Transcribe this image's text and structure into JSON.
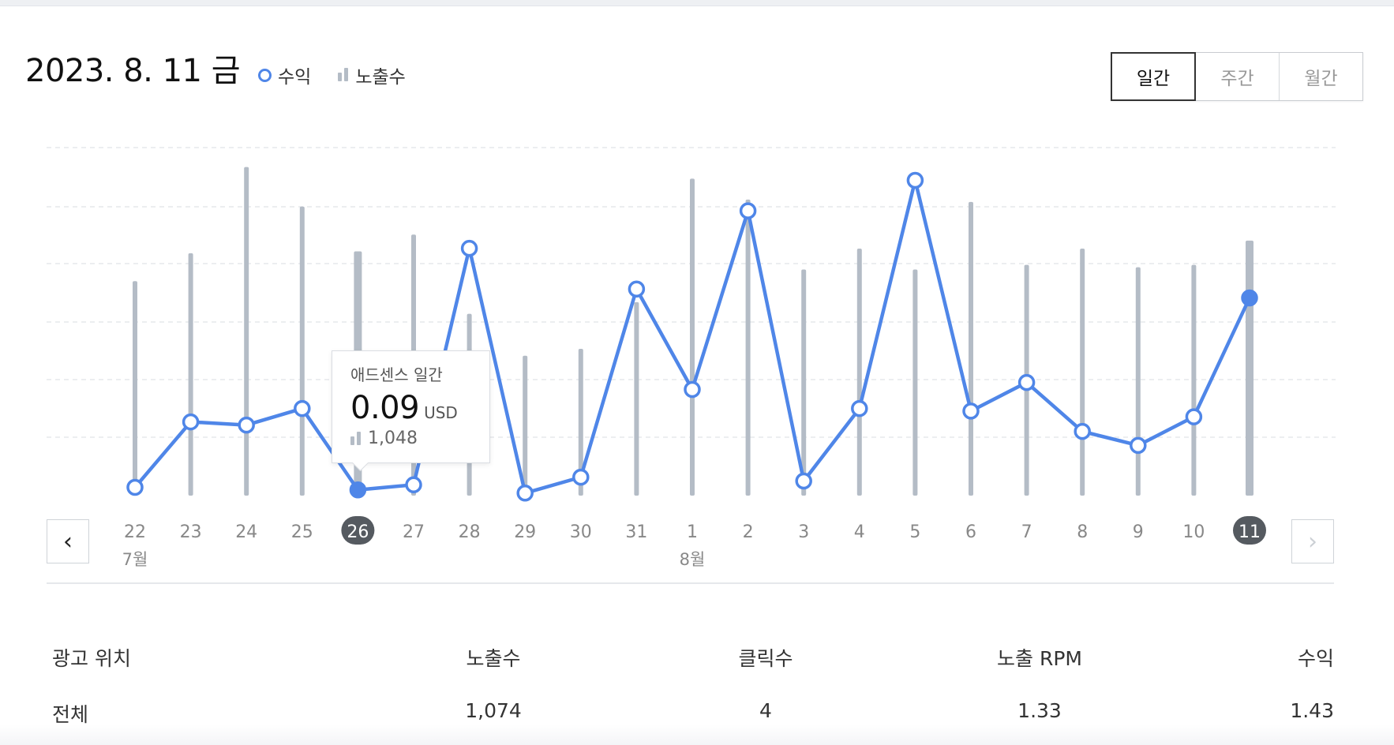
{
  "header": {
    "date": "2023. 8. 11 금",
    "legend": [
      {
        "label": "수익",
        "icon": "circle-dot-icon",
        "color": "#4f86e8"
      },
      {
        "label": "노출수",
        "icon": "bars-icon",
        "color": "#b4bcc6"
      }
    ],
    "period_tabs": [
      {
        "label": "일간",
        "active": true
      },
      {
        "label": "주간",
        "active": false
      },
      {
        "label": "월간",
        "active": false
      }
    ]
  },
  "chart_data": {
    "type": "bar+line",
    "categories": [
      "22",
      "23",
      "24",
      "25",
      "26",
      "27",
      "28",
      "29",
      "30",
      "31",
      "1",
      "2",
      "3",
      "4",
      "5",
      "6",
      "7",
      "8",
      "9",
      "10",
      "11"
    ],
    "month_labels": [
      {
        "label": "7월",
        "at_index": 0
      },
      {
        "label": "8월",
        "at_index": 10
      }
    ],
    "series": [
      {
        "name": "노출수",
        "type": "bar",
        "color": "#b4bcc6",
        "values": [
          920,
          1040,
          1410,
          1240,
          1048,
          1120,
          780,
          600,
          630,
          830,
          1360,
          1270,
          970,
          1060,
          970,
          1260,
          990,
          1060,
          980,
          990,
          1094
        ]
      },
      {
        "name": "수익",
        "type": "line",
        "color": "#4f86e8",
        "values": [
          0.13,
          1.16,
          1.11,
          1.37,
          0.09,
          0.17,
          3.89,
          0.04,
          0.29,
          3.25,
          1.67,
          4.48,
          0.23,
          1.37,
          4.96,
          1.33,
          1.78,
          1.01,
          0.79,
          1.24,
          3.11
        ]
      }
    ],
    "highlighted_index": 4,
    "selected_index": 20,
    "grid": true
  },
  "tooltip": {
    "title": "애드센스 일간",
    "value": "0.09",
    "unit": "USD",
    "impressions": "1,048"
  },
  "stats": {
    "headers": [
      "광고 위치",
      "노출수",
      "클릭수",
      "노출 RPM",
      "수익"
    ],
    "rows": [
      [
        "전체",
        "1,074",
        "4",
        "1.33",
        "1.43"
      ]
    ]
  }
}
